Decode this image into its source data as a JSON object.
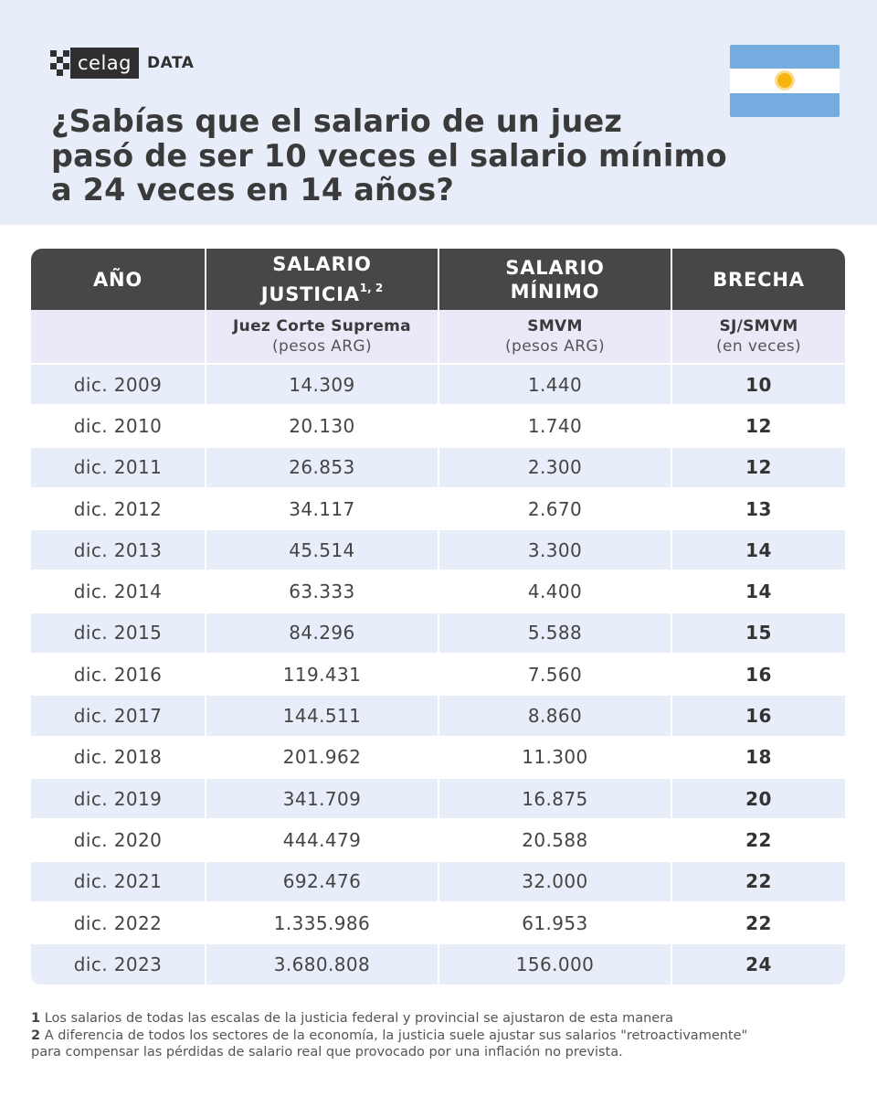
{
  "brand": {
    "logo_text": "celag",
    "logo_suffix": "DATA"
  },
  "flag_icon": "argentina-flag-icon",
  "title_lines": [
    "¿Sabías que el salario de un juez",
    "pasó de ser 10 veces el salario mínimo",
    "a 24 veces en 14 años?"
  ],
  "table": {
    "headers": {
      "year": "AÑO",
      "salary_justice_line1": "SALARIO",
      "salary_justice_line2": "JUSTICIA",
      "salary_justice_sup": "1, 2",
      "salary_min_line1": "SALARIO",
      "salary_min_line2": "MÍNIMO",
      "gap": "BRECHA"
    },
    "subheaders": {
      "justice_strong": "Juez Corte Suprema",
      "justice_unit": "(pesos ARG)",
      "min_strong": "SMVM",
      "min_unit": "(pesos ARG)",
      "gap_strong": "SJ/SMVM",
      "gap_unit": "(en veces)"
    },
    "rows": [
      {
        "year": "dic. 2009",
        "justice": "14.309",
        "min": "1.440",
        "gap": "10"
      },
      {
        "year": "dic. 2010",
        "justice": "20.130",
        "min": "1.740",
        "gap": "12"
      },
      {
        "year": "dic. 2011",
        "justice": "26.853",
        "min": "2.300",
        "gap": "12"
      },
      {
        "year": "dic. 2012",
        "justice": "34.117",
        "min": "2.670",
        "gap": "13"
      },
      {
        "year": "dic. 2013",
        "justice": "45.514",
        "min": "3.300",
        "gap": "14"
      },
      {
        "year": "dic. 2014",
        "justice": "63.333",
        "min": "4.400",
        "gap": "14"
      },
      {
        "year": "dic. 2015",
        "justice": "84.296",
        "min": "5.588",
        "gap": "15"
      },
      {
        "year": "dic. 2016",
        "justice": "119.431",
        "min": "7.560",
        "gap": "16"
      },
      {
        "year": "dic. 2017",
        "justice": "144.511",
        "min": "8.860",
        "gap": "16"
      },
      {
        "year": "dic. 2018",
        "justice": "201.962",
        "min": "11.300",
        "gap": "18"
      },
      {
        "year": "dic. 2019",
        "justice": "341.709",
        "min": "16.875",
        "gap": "20"
      },
      {
        "year": "dic. 2020",
        "justice": "444.479",
        "min": "20.588",
        "gap": "22"
      },
      {
        "year": "dic. 2021",
        "justice": "692.476",
        "min": "32.000",
        "gap": "22"
      },
      {
        "year": "dic. 2022",
        "justice": "1.335.986",
        "min": "61.953",
        "gap": "22"
      },
      {
        "year": "dic. 2023",
        "justice": "3.680.808",
        "min": "156.000",
        "gap": "24"
      }
    ]
  },
  "notes": [
    {
      "num": "1",
      "text": " Los salarios de todas las escalas de la justicia federal y provincial se ajustaron de esta manera"
    },
    {
      "num": "2",
      "text": " A diferencia de todos los sectores de la economía, la justicia suele ajustar sus salarios \"retroactivamente\""
    },
    {
      "num": "",
      "text": "para compensar las pérdidas de salario real que provocado por una inflación no prevista."
    }
  ]
}
